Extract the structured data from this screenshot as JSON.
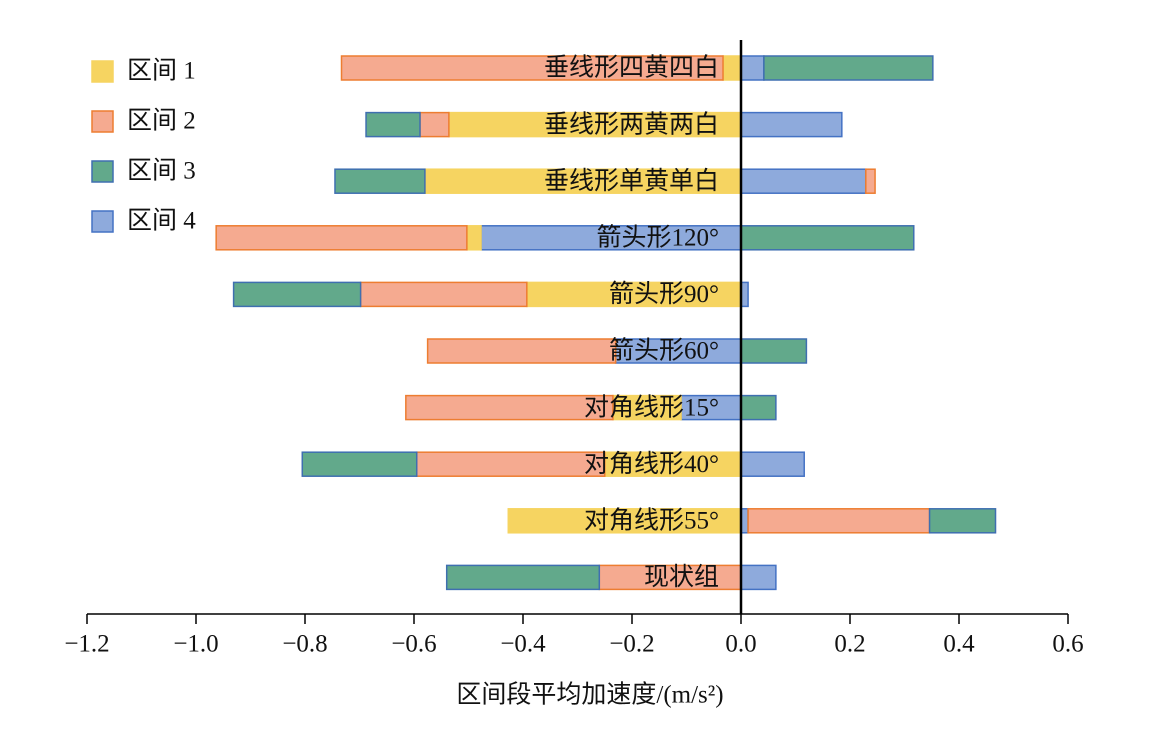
{
  "chart_data": {
    "type": "diverging-stacked-bar",
    "orientation": "horizontal",
    "xlabel": "区间段平均加速度/(m/s²)",
    "categories": [
      "垂线形四黄四白",
      "垂线形两黄两白",
      "垂线形单黄单白",
      "箭头形120°",
      "箭头形90°",
      "箭头形60°",
      "对角线形15°",
      "对角线形40°",
      "对角线形55°",
      "现状组"
    ],
    "series": [
      {
        "name": "区间 1",
        "color": "#f6d461",
        "edgecolor": "#f6d461",
        "values": [
          -0.033,
          -0.536,
          -0.58,
          -0.026,
          -0.393,
          null,
          -0.125,
          -0.25,
          -0.427,
          null
        ]
      },
      {
        "name": "区间 2",
        "color": "#f5aa90",
        "edgecolor": "#ed7d31",
        "values": [
          -0.7,
          -0.053,
          0.017,
          -0.46,
          -0.305,
          -0.345,
          -0.38,
          -0.345,
          0.333,
          -0.26
        ]
      },
      {
        "name": "区间 3",
        "color": "#62a98b",
        "edgecolor": "#3f6fb0",
        "values": [
          0.31,
          -0.099,
          -0.165,
          0.317,
          -0.233,
          0.12,
          0.064,
          -0.21,
          0.121,
          -0.28
        ]
      },
      {
        "name": "区间 4",
        "color": "#8eaadc",
        "edgecolor": "#4472c4",
        "values": [
          0.042,
          0.185,
          0.229,
          -0.477,
          0.013,
          -0.23,
          -0.11,
          0.116,
          0.013,
          0.064
        ]
      }
    ],
    "xlim": [
      -1.2,
      0.6
    ],
    "xticks": [
      {
        "value": -1.2,
        "label": "−1.2"
      },
      {
        "value": -1.0,
        "label": "−1.0"
      },
      {
        "value": -0.8,
        "label": "−0.8"
      },
      {
        "value": -0.6,
        "label": "−0.6"
      },
      {
        "value": -0.4,
        "label": "−0.4"
      },
      {
        "value": -0.2,
        "label": "−0.2"
      },
      {
        "value": 0,
        "label": "0.0"
      },
      {
        "value": 0.2,
        "label": "0.2"
      },
      {
        "value": 0.4,
        "label": "0.4"
      },
      {
        "value": 0.6,
        "label": "0.6"
      }
    ],
    "legend": "upper left",
    "grid": false
  }
}
